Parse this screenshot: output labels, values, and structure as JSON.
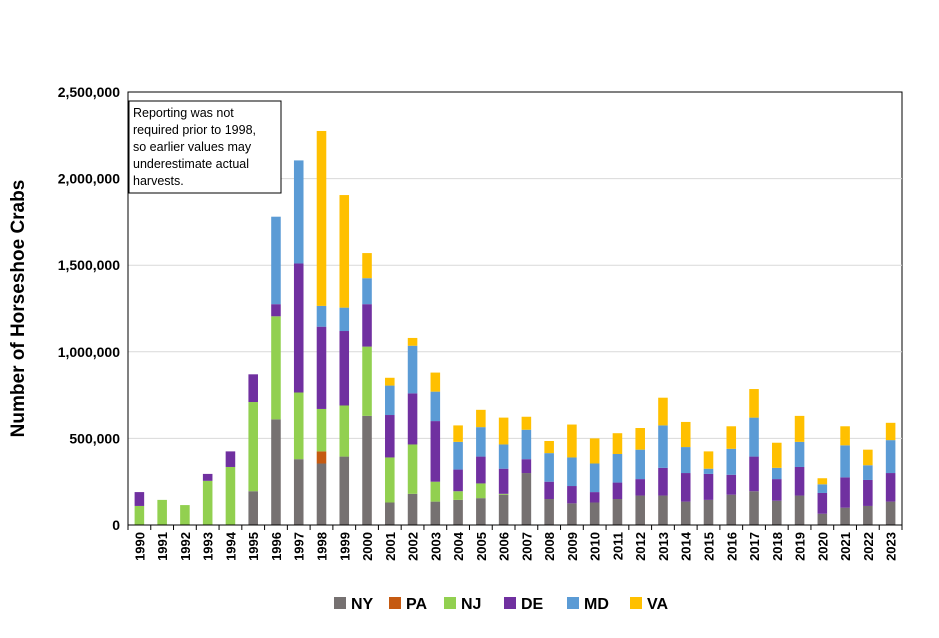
{
  "chart_data": {
    "type": "bar",
    "stacked": true,
    "ylabel": "Number of Horseshoe Crabs",
    "xlabel": "",
    "ylim": [
      0,
      2500000
    ],
    "y_ticks": [
      "0",
      "500,000",
      "1,000,000",
      "1,500,000",
      "2,000,000",
      "2,500,000"
    ],
    "grid": "horizontal",
    "legend_position": "bottom",
    "annotation": "Reporting was not required prior to 1998, so earlier values may underestimate actual harvests.",
    "categories": [
      "1990",
      "1991",
      "1992",
      "1993",
      "1994",
      "1995",
      "1996",
      "1997",
      "1998",
      "1999",
      "2000",
      "2001",
      "2002",
      "2003",
      "2004",
      "2005",
      "2006",
      "2007",
      "2008",
      "2009",
      "2010",
      "2011",
      "2012",
      "2013",
      "2014",
      "2015",
      "2016",
      "2017",
      "2018",
      "2019",
      "2020",
      "2021",
      "2022",
      "2023"
    ],
    "series": [
      {
        "name": "NY",
        "color": "#767171",
        "values": [
          0,
          0,
          0,
          0,
          0,
          195000,
          610000,
          380000,
          355000,
          395000,
          630000,
          130000,
          180000,
          135000,
          145000,
          155000,
          175000,
          300000,
          150000,
          125000,
          130000,
          150000,
          170000,
          170000,
          135000,
          145000,
          175000,
          195000,
          140000,
          170000,
          65000,
          100000,
          110000,
          135000
        ]
      },
      {
        "name": "PA",
        "color": "#C55A11",
        "values": [
          0,
          0,
          0,
          0,
          0,
          0,
          0,
          0,
          70000,
          0,
          0,
          0,
          0,
          0,
          0,
          0,
          0,
          0,
          0,
          0,
          0,
          0,
          0,
          0,
          0,
          0,
          0,
          0,
          0,
          0,
          0,
          0,
          0,
          0
        ]
      },
      {
        "name": "NJ",
        "color": "#92D050",
        "values": [
          110000,
          145000,
          115000,
          255000,
          335000,
          515000,
          595000,
          385000,
          245000,
          295000,
          400000,
          260000,
          285000,
          115000,
          50000,
          85000,
          5000,
          0,
          0,
          0,
          0,
          0,
          0,
          0,
          0,
          0,
          0,
          0,
          0,
          0,
          0,
          0,
          0,
          0
        ]
      },
      {
        "name": "DE",
        "color": "#7030A0",
        "values": [
          80000,
          0,
          0,
          40000,
          90000,
          160000,
          70000,
          745000,
          475000,
          430000,
          245000,
          245000,
          295000,
          350000,
          125000,
          155000,
          145000,
          80000,
          100000,
          100000,
          60000,
          95000,
          95000,
          160000,
          165000,
          150000,
          115000,
          200000,
          125000,
          165000,
          120000,
          175000,
          150000,
          165000
        ]
      },
      {
        "name": "MD",
        "color": "#5B9BD5",
        "values": [
          0,
          0,
          0,
          0,
          0,
          0,
          505000,
          595000,
          120000,
          135000,
          150000,
          170000,
          275000,
          170000,
          160000,
          170000,
          140000,
          170000,
          165000,
          165000,
          165000,
          165000,
          170000,
          245000,
          150000,
          30000,
          150000,
          225000,
          65000,
          145000,
          50000,
          185000,
          85000,
          190000
        ]
      },
      {
        "name": "VA",
        "color": "#FFC000",
        "values": [
          0,
          0,
          0,
          0,
          0,
          0,
          0,
          0,
          1010000,
          650000,
          145000,
          45000,
          45000,
          110000,
          95000,
          100000,
          155000,
          75000,
          70000,
          190000,
          145000,
          120000,
          125000,
          160000,
          145000,
          100000,
          130000,
          165000,
          145000,
          150000,
          35000,
          110000,
          90000,
          100000
        ]
      }
    ]
  }
}
